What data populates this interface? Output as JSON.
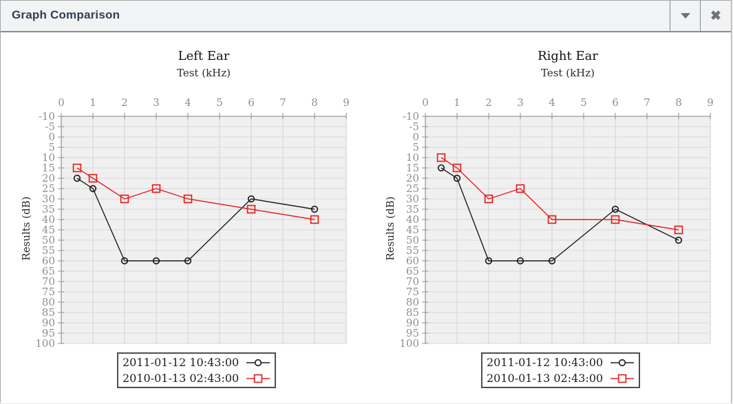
{
  "window": {
    "title": "Graph Comparison",
    "titlebar_icons": [
      "chevron-down",
      "close"
    ]
  },
  "colors": {
    "series_black": "#1b1b1b",
    "series_red": "#e61e1e",
    "plot_bg": "#f0f0f0",
    "grid": "#dcdcdc",
    "axis": "#9e9e9e",
    "tick_label": "#8e8e8e"
  },
  "chart_data": [
    {
      "type": "line",
      "title": "Left Ear",
      "xlabel": "Test (kHz)",
      "ylabel": "Results (dB)",
      "xlim": [
        0,
        9
      ],
      "ylim": [
        -10,
        100
      ],
      "y_increases_downward": true,
      "x_ticks": [
        0,
        1,
        2,
        3,
        4,
        5,
        6,
        7,
        8,
        9
      ],
      "y_tick_step": 5,
      "grid": true,
      "legend_position": "bottom",
      "x": [
        0.5,
        1,
        2,
        3,
        4,
        6,
        8
      ],
      "series": [
        {
          "name": "2011-01-12 10:43:00",
          "marker": "circle",
          "color": "#1b1b1b",
          "values": [
            20,
            25,
            60,
            60,
            60,
            30,
            35
          ]
        },
        {
          "name": "2010-01-13 02:43:00",
          "marker": "square",
          "color": "#e61e1e",
          "values": [
            15,
            20,
            30,
            25,
            30,
            35,
            40
          ]
        }
      ]
    },
    {
      "type": "line",
      "title": "Right Ear",
      "xlabel": "Test (kHz)",
      "ylabel": "Results (dB)",
      "xlim": [
        0,
        9
      ],
      "ylim": [
        -10,
        100
      ],
      "y_increases_downward": true,
      "x_ticks": [
        0,
        1,
        2,
        3,
        4,
        5,
        6,
        7,
        8,
        9
      ],
      "y_tick_step": 5,
      "grid": true,
      "legend_position": "bottom",
      "x": [
        0.5,
        1,
        2,
        3,
        4,
        6,
        8
      ],
      "series": [
        {
          "name": "2011-01-12 10:43:00",
          "marker": "circle",
          "color": "#1b1b1b",
          "values": [
            15,
            20,
            60,
            60,
            60,
            35,
            50
          ]
        },
        {
          "name": "2010-01-13 02:43:00",
          "marker": "square",
          "color": "#e61e1e",
          "values": [
            10,
            15,
            30,
            25,
            40,
            40,
            45
          ]
        }
      ]
    }
  ]
}
